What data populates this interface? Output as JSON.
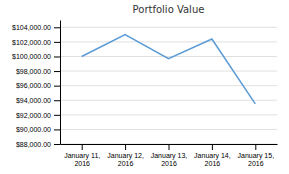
{
  "chart_data": {
    "type": "line",
    "title": "Portfolio Value",
    "categories": [
      "January 11,\n2016",
      "January 12,\n2016",
      "January 13,\n2016",
      "January 14,\n2016",
      "January 15,\n2016"
    ],
    "values": [
      100000,
      103000,
      99700,
      102400,
      93500
    ],
    "color": "#5B9BD5",
    "ylim": [
      88000,
      105000
    ],
    "yticks": [
      {
        "value": 88000,
        "label": "$88,000.00"
      },
      {
        "value": 90000,
        "label": "$90,000.00"
      },
      {
        "value": 92000,
        "label": "$92,000.00"
      },
      {
        "value": 94000,
        "label": "$94,000.00"
      },
      {
        "value": 96000,
        "label": "$96,000.00"
      },
      {
        "value": 98000,
        "label": "$98,000.00"
      },
      {
        "value": 100000,
        "label": "$100,000.00"
      },
      {
        "value": 102000,
        "label": "$102,000.00"
      },
      {
        "value": 104000,
        "label": "$104,000.00"
      }
    ],
    "grid": true
  }
}
